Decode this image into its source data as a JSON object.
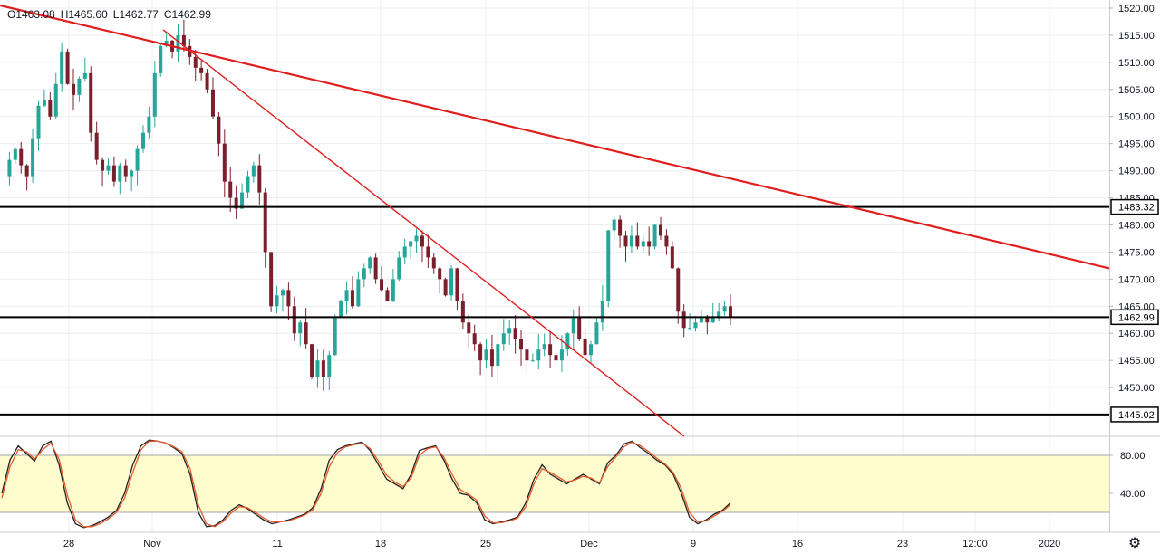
{
  "ohlc": {
    "open": "O1463.08",
    "high": "H1465.60",
    "low": "L1462.77",
    "close": "C1462.99"
  },
  "settings_icon": "gear-icon",
  "colors": {
    "up": "#26a69a",
    "down": "#7b1f2c",
    "trendline": "#e01e1e",
    "level": "#000000",
    "stoch_band": "#fffcce",
    "stoch_k": "#222222",
    "stoch_d": "#e65a2e",
    "grid": "#eceff2"
  },
  "chart_data": [
    {
      "type": "candlestick",
      "instrument_pane": "price",
      "y_ticks": [
        "1520.00",
        "1515.00",
        "1510.00",
        "1505.00",
        "1500.00",
        "1495.00",
        "1490.00",
        "1485.00",
        "1480.00",
        "1475.00",
        "1470.00",
        "1465.00",
        "1460.00",
        "1455.00",
        "1450.00"
      ],
      "ylim": [
        1441,
        1521.5
      ],
      "x_ticks": [
        "28",
        "Nov",
        "11",
        "18",
        "25",
        "Dec",
        "9",
        "16",
        "23",
        "12:00",
        "2020"
      ],
      "price_labels": [
        "1483.32",
        "1462.99",
        "1445.02"
      ],
      "horizontal_levels": [
        1483.32,
        1462.99,
        1445.02
      ],
      "trendlines": [
        {
          "from": [
            0,
            1520.5
          ],
          "to": [
            1224,
            1472.0
          ]
        },
        {
          "from": [
            180,
            1516.0
          ],
          "to": [
            755,
            1441.0
          ]
        }
      ],
      "price_path": [
        1489,
        1492,
        1494,
        1491,
        1489,
        1496,
        1502,
        1503,
        1500,
        1506,
        1512,
        1506,
        1504,
        1507,
        1508,
        1497,
        1492,
        1490,
        1491,
        1488,
        1491,
        1489,
        1490,
        1494,
        1497,
        1500,
        1508,
        1513,
        1514,
        1512,
        1515,
        1513,
        1511,
        1509,
        1508,
        1505,
        1500,
        1495,
        1488,
        1485,
        1483,
        1486,
        1489,
        1491,
        1486,
        1475,
        1465,
        1467,
        1468,
        1465,
        1460,
        1462,
        1458,
        1452,
        1455,
        1452,
        1456,
        1463,
        1466,
        1468,
        1465,
        1470,
        1472,
        1474,
        1470,
        1468,
        1466,
        1470,
        1474,
        1476,
        1477,
        1478,
        1476,
        1474,
        1472,
        1470,
        1467,
        1472,
        1466,
        1462,
        1460,
        1458,
        1455,
        1457,
        1454,
        1458,
        1460,
        1461,
        1459,
        1457,
        1455,
        1455,
        1457,
        1458,
        1456,
        1455,
        1457,
        1460,
        1463,
        1459,
        1456,
        1458,
        1462,
        1466,
        1479,
        1481,
        1478,
        1476,
        1478,
        1476,
        1477,
        1476,
        1480,
        1478,
        1476,
        1472,
        1464,
        1461,
        1461,
        1462,
        1463,
        1462,
        1463,
        1464,
        1465,
        1463
      ]
    },
    {
      "type": "line",
      "instrument_pane": "stochastic",
      "y_ticks": [
        "80.00",
        "40.00"
      ],
      "ylim": [
        0,
        100
      ],
      "band": [
        20,
        80
      ],
      "series": [
        {
          "values": [
            40,
            75,
            90,
            82,
            74,
            90,
            95,
            70,
            30,
            8,
            4,
            6,
            10,
            15,
            22,
            40,
            70,
            90,
            96,
            95,
            93,
            88,
            82,
            60,
            20,
            5,
            6,
            12,
            22,
            28,
            24,
            18,
            12,
            8,
            10,
            12,
            15,
            18,
            25,
            45,
            75,
            86,
            90,
            92,
            94,
            85,
            70,
            55,
            50,
            45,
            60,
            85,
            88,
            90,
            75,
            55,
            40,
            38,
            30,
            12,
            8,
            10,
            12,
            15,
            30,
            55,
            70,
            60,
            55,
            50,
            55,
            60,
            55,
            50,
            72,
            80,
            92,
            95,
            88,
            82,
            75,
            70,
            60,
            40,
            15,
            8,
            12,
            18,
            22,
            30
          ]
        },
        {
          "values": [
            35,
            68,
            86,
            84,
            76,
            86,
            93,
            76,
            38,
            12,
            5,
            5,
            8,
            13,
            20,
            35,
            62,
            86,
            95,
            95,
            93,
            89,
            84,
            66,
            28,
            8,
            5,
            10,
            19,
            26,
            25,
            20,
            14,
            10,
            10,
            11,
            14,
            17,
            23,
            40,
            68,
            83,
            89,
            91,
            93,
            87,
            74,
            59,
            52,
            47,
            56,
            80,
            87,
            89,
            78,
            60,
            44,
            39,
            33,
            16,
            9,
            9,
            11,
            14,
            26,
            50,
            66,
            62,
            57,
            52,
            54,
            58,
            56,
            51,
            68,
            78,
            89,
            94,
            90,
            84,
            77,
            71,
            62,
            45,
            20,
            10,
            11,
            16,
            21,
            28
          ]
        }
      ]
    }
  ]
}
